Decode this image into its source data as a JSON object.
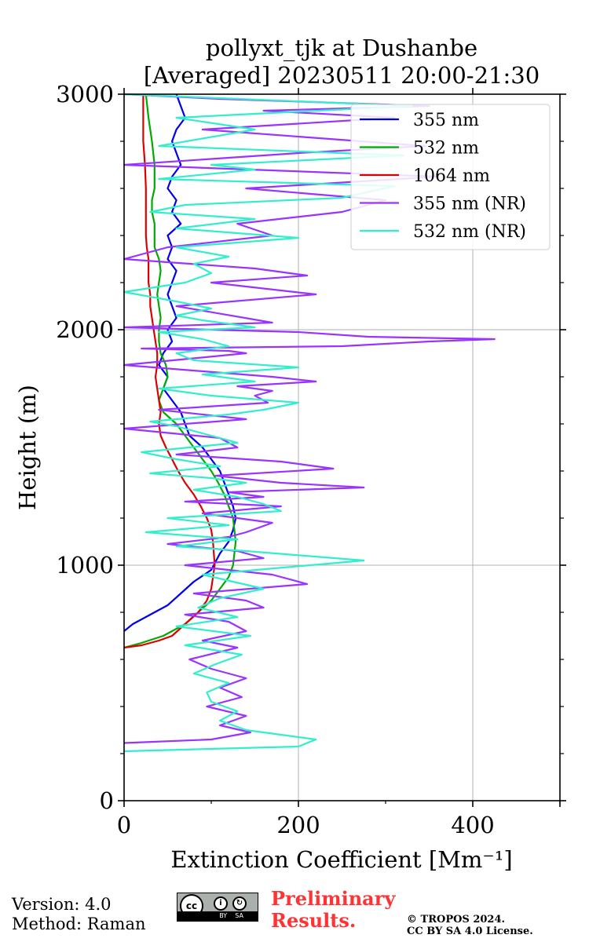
{
  "chart_data": {
    "type": "line",
    "title": [
      "pollyxt_tjk at Dushanbe",
      "[Averaged] 20230511 20:00-21:30"
    ],
    "xlabel": "Extinction Coefficient [Mm⁻¹]",
    "ylabel": "Height (m)",
    "xlim": [
      0,
      500
    ],
    "ylim": [
      0,
      3000
    ],
    "xticks": [
      0,
      200,
      400
    ],
    "yticks": [
      0,
      1000,
      2000,
      3000
    ],
    "grid": true,
    "legend_position": "top-right",
    "series": [
      {
        "name": "355 nm",
        "color": "#0000ee",
        "x": [
          0,
          10,
          30,
          50,
          65,
          80,
          100,
          110,
          120,
          125,
          128,
          125,
          120,
          115,
          110,
          100,
          90,
          75,
          70,
          65,
          55,
          45,
          50,
          40,
          45,
          55,
          50,
          60,
          55,
          50,
          55,
          60,
          50,
          55,
          50,
          65,
          55,
          60,
          50,
          55,
          65,
          55,
          60,
          70,
          60
        ],
        "y": [
          720,
          750,
          790,
          830,
          880,
          930,
          980,
          1050,
          1100,
          1150,
          1200,
          1250,
          1300,
          1350,
          1400,
          1450,
          1500,
          1550,
          1600,
          1650,
          1700,
          1750,
          1800,
          1850,
          1900,
          1950,
          2000,
          2050,
          2100,
          2150,
          2200,
          2250,
          2300,
          2350,
          2400,
          2450,
          2500,
          2550,
          2600,
          2650,
          2700,
          2800,
          2850,
          2900,
          3000
        ]
      },
      {
        "name": "532 nm",
        "color": "#00aa00",
        "x": [
          0,
          20,
          45,
          70,
          85,
          100,
          110,
          120,
          125,
          128,
          125,
          120,
          115,
          108,
          100,
          90,
          80,
          70,
          60,
          45,
          40,
          45,
          50,
          48,
          42,
          40,
          40,
          42,
          40,
          38,
          40,
          42,
          40,
          35,
          35,
          35,
          32,
          32,
          35,
          35,
          35,
          32,
          30,
          28,
          25
        ],
        "y": [
          650,
          670,
          700,
          750,
          800,
          850,
          900,
          950,
          1000,
          1100,
          1200,
          1250,
          1300,
          1350,
          1400,
          1450,
          1500,
          1550,
          1600,
          1650,
          1700,
          1750,
          1800,
          1850,
          1900,
          1950,
          2000,
          2050,
          2100,
          2150,
          2200,
          2250,
          2300,
          2350,
          2400,
          2450,
          2500,
          2550,
          2600,
          2650,
          2700,
          2800,
          2850,
          2900,
          3000
        ]
      },
      {
        "name": "1064 nm",
        "color": "#dd0000",
        "x": [
          0,
          20,
          40,
          55,
          70,
          85,
          95,
          100,
          102,
          104,
          103,
          102,
          100,
          95,
          88,
          80,
          70,
          62,
          55,
          48,
          42,
          40,
          42,
          40,
          38,
          36,
          38,
          38,
          36,
          34,
          32,
          30,
          30,
          28,
          28,
          28,
          26,
          25,
          25,
          25,
          25,
          25,
          24,
          22,
          22
        ],
        "y": [
          650,
          660,
          680,
          700,
          750,
          800,
          850,
          900,
          950,
          1000,
          1050,
          1100,
          1150,
          1200,
          1250,
          1300,
          1350,
          1400,
          1450,
          1500,
          1550,
          1600,
          1650,
          1700,
          1750,
          1800,
          1850,
          1900,
          1950,
          2000,
          2050,
          2100,
          2150,
          2200,
          2250,
          2300,
          2350,
          2400,
          2450,
          2500,
          2550,
          2600,
          2700,
          2800,
          3000
        ]
      },
      {
        "name": "355 nm (NR)",
        "color": "#9933ff",
        "x": [
          0,
          100,
          145,
          110,
          140,
          95,
          135,
          110,
          140,
          100,
          75,
          130,
          90,
          140,
          120,
          70,
          160,
          140,
          80,
          210,
          170,
          70,
          160,
          130,
          50,
          120,
          140,
          170,
          90,
          180,
          70,
          160,
          120,
          275,
          180,
          105,
          240,
          180,
          60,
          130,
          110,
          0,
          140,
          40,
          165,
          150,
          170,
          130,
          220,
          170,
          0,
          140,
          120,
          20,
          250,
          350,
          425,
          280,
          200,
          0,
          170,
          60,
          220,
          100,
          210,
          150,
          0,
          50,
          170,
          130,
          250,
          300,
          140,
          360,
          0,
          200,
          345,
          90,
          310,
          160,
          350,
          110,
          0
        ],
        "y": [
          245,
          260,
          290,
          320,
          360,
          400,
          440,
          480,
          520,
          560,
          600,
          650,
          680,
          720,
          760,
          790,
          820,
          850,
          880,
          920,
          960,
          1000,
          1030,
          1060,
          1090,
          1120,
          1140,
          1180,
          1220,
          1250,
          1270,
          1290,
          1310,
          1330,
          1350,
          1380,
          1410,
          1440,
          1470,
          1500,
          1540,
          1580,
          1620,
          1660,
          1690,
          1720,
          1740,
          1760,
          1780,
          1800,
          1850,
          1900,
          1910,
          1920,
          1930,
          1950,
          1960,
          1970,
          1990,
          2010,
          2030,
          2100,
          2150,
          2200,
          2230,
          2260,
          2300,
          2350,
          2400,
          2450,
          2500,
          2550,
          2600,
          2650,
          2700,
          2750,
          2780,
          2850,
          2900,
          2930,
          2950,
          2980,
          3000
        ]
      },
      {
        "name": "532 nm (NR)",
        "color": "#33eecc",
        "x": [
          0,
          200,
          220,
          140,
          110,
          130,
          100,
          95,
          120,
          80,
          105,
          135,
          70,
          145,
          60,
          130,
          85,
          110,
          160,
          90,
          275,
          140,
          60,
          130,
          25,
          120,
          50,
          180,
          160,
          130,
          80,
          140,
          100,
          30,
          110,
          60,
          20,
          130,
          90,
          60,
          30,
          120,
          160,
          200,
          100,
          40,
          150,
          90,
          200,
          80,
          60,
          120,
          90,
          40,
          150,
          90,
          60,
          100,
          60,
          0,
          70,
          100,
          80,
          120,
          60,
          200,
          60,
          150,
          30,
          70,
          250,
          310,
          40,
          150,
          100,
          320,
          40,
          150,
          60,
          330,
          0
        ],
        "y": [
          210,
          230,
          260,
          300,
          340,
          380,
          420,
          460,
          500,
          540,
          580,
          620,
          660,
          700,
          740,
          780,
          820,
          860,
          900,
          960,
          1020,
          1060,
          1080,
          1110,
          1140,
          1170,
          1200,
          1230,
          1260,
          1290,
          1320,
          1350,
          1370,
          1390,
          1420,
          1450,
          1480,
          1520,
          1560,
          1590,
          1610,
          1640,
          1660,
          1690,
          1720,
          1750,
          1780,
          1810,
          1840,
          1870,
          1900,
          1930,
          1960,
          1990,
          2010,
          2040,
          2060,
          2090,
          2120,
          2160,
          2200,
          2240,
          2280,
          2310,
          2350,
          2390,
          2430,
          2470,
          2500,
          2530,
          2560,
          2610,
          2640,
          2680,
          2700,
          2740,
          2780,
          2850,
          2900,
          2950,
          3000
        ]
      }
    ]
  },
  "footer": {
    "version": "Version: 4.0",
    "method": "Method: Raman",
    "preliminary_1": "Preliminary",
    "preliminary_2": "Results.",
    "copyright_1": "© TROPOS 2024.",
    "copyright_2": "CC BY SA 4.0 License.",
    "cc_logo": "cc-by-sa-logo"
  }
}
